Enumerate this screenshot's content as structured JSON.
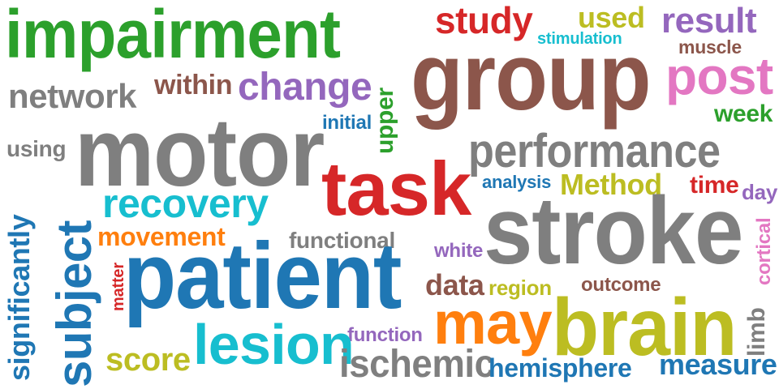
{
  "words": {
    "impairment": "impairment",
    "study": "study",
    "used": "used",
    "result": "result",
    "stimulation": "stimulation",
    "muscle": "muscle",
    "group": "group",
    "post": "post",
    "network": "network",
    "within": "within",
    "change": "change",
    "upper": "upper",
    "week": "week",
    "initial": "initial",
    "using": "using",
    "motor": "motor",
    "performance": "performance",
    "significantly": "significantly",
    "subject": "subject",
    "recovery": "recovery",
    "task": "task",
    "analysis": "analysis",
    "method": "Method",
    "time": "time",
    "day": "day",
    "stroke": "stroke",
    "movement": "movement",
    "functional": "functional",
    "white": "white",
    "cortical": "cortical",
    "matter": "matter",
    "patient": "patient",
    "data": "data",
    "region": "region",
    "outcome": "outcome",
    "may": "may",
    "brain": "brain",
    "limb": "limb",
    "function": "function",
    "score": "score",
    "lesion": "lesion",
    "ischemic": "ischemic",
    "hemisphere": "hemisphere",
    "measure": "measure"
  }
}
